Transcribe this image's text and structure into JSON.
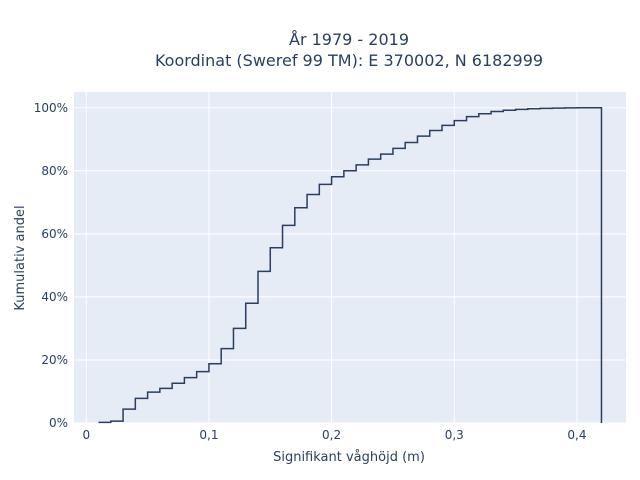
{
  "chart_data": {
    "type": "line",
    "line_shape": "step",
    "title_line1": "År 1979 - 2019",
    "title_line2": "Koordinat (Sweref 99 TM): E 370002, N 6182999",
    "xlabel": "Signifikant våghöjd (m)",
    "ylabel": "Kumulativ andel",
    "xlim": [
      -0.01,
      0.44
    ],
    "ylim": [
      0,
      1.05
    ],
    "x_ticks": [
      0,
      0.1,
      0.2,
      0.3,
      0.4
    ],
    "x_tick_labels": [
      "0",
      "0,1",
      "0,2",
      "0,3",
      "0,4"
    ],
    "y_ticks": [
      0,
      0.2,
      0.4,
      0.6,
      0.8,
      1.0
    ],
    "y_tick_labels": [
      "0%",
      "20%",
      "40%",
      "60%",
      "80%",
      "100%"
    ],
    "grid": true,
    "colors": {
      "line": "#2a3f5f",
      "plot_bg": "#e5ecf6",
      "grid": "#ffffff"
    },
    "x": [
      0.01,
      0.02,
      0.03,
      0.04,
      0.05,
      0.06,
      0.07,
      0.08,
      0.09,
      0.1,
      0.11,
      0.12,
      0.13,
      0.14,
      0.15,
      0.16,
      0.17,
      0.18,
      0.19,
      0.2,
      0.21,
      0.22,
      0.23,
      0.24,
      0.25,
      0.26,
      0.27,
      0.28,
      0.29,
      0.3,
      0.31,
      0.32,
      0.33,
      0.34,
      0.35,
      0.36,
      0.37,
      0.38,
      0.39,
      0.4,
      0.41,
      0.42
    ],
    "y": [
      0.002,
      0.006,
      0.044,
      0.078,
      0.098,
      0.11,
      0.126,
      0.144,
      0.163,
      0.188,
      0.236,
      0.3,
      0.38,
      0.481,
      0.556,
      0.627,
      0.683,
      0.725,
      0.757,
      0.781,
      0.8,
      0.819,
      0.837,
      0.853,
      0.871,
      0.89,
      0.91,
      0.928,
      0.944,
      0.959,
      0.972,
      0.981,
      0.988,
      0.992,
      0.995,
      0.997,
      0.998,
      0.999,
      0.9995,
      1.0,
      1.0,
      0
    ]
  }
}
